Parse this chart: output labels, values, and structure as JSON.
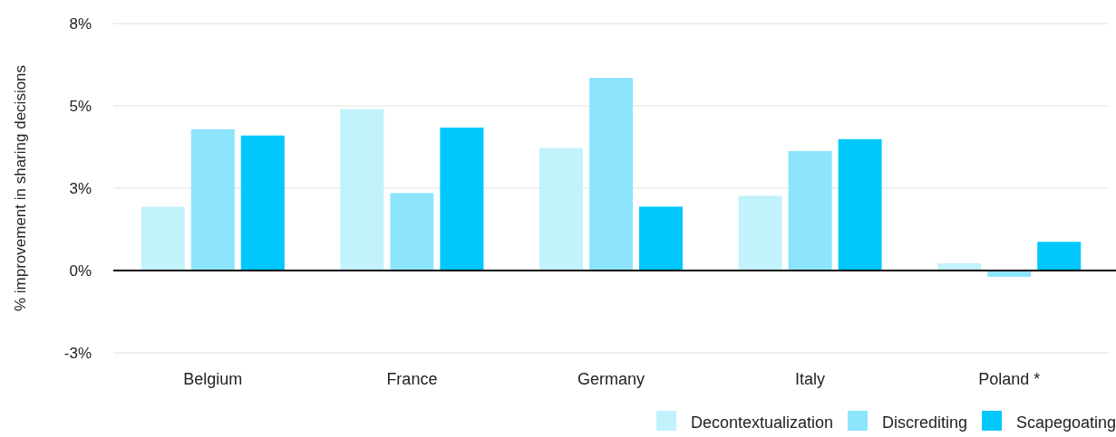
{
  "chart_data": {
    "type": "bar",
    "ylabel": "% improvement in sharing decisions",
    "categories": [
      "Belgium",
      "France",
      "Germany",
      "Italy",
      "Poland *"
    ],
    "series": [
      {
        "name": "Decontextualization",
        "color": "#c2f2fc",
        "values": [
          1.94,
          4.9,
          3.72,
          2.27,
          0.22
        ]
      },
      {
        "name": "Discrediting",
        "color": "#8ce5fc",
        "values": [
          4.29,
          2.35,
          5.85,
          3.63,
          -0.19
        ]
      },
      {
        "name": "Scapegoating",
        "color": "#00c8fc",
        "values": [
          4.1,
          4.34,
          1.94,
          3.99,
          0.87
        ]
      }
    ],
    "ylim": [
      -2.5,
      7.5
    ],
    "yticks": [
      {
        "value": -2.5,
        "label": "-3%"
      },
      {
        "value": 0,
        "label": "0%"
      },
      {
        "value": 2.5,
        "label": "3%"
      },
      {
        "value": 5,
        "label": "5%"
      },
      {
        "value": 7.5,
        "label": "8%"
      }
    ],
    "grid": "y",
    "legend": "bottom right"
  }
}
